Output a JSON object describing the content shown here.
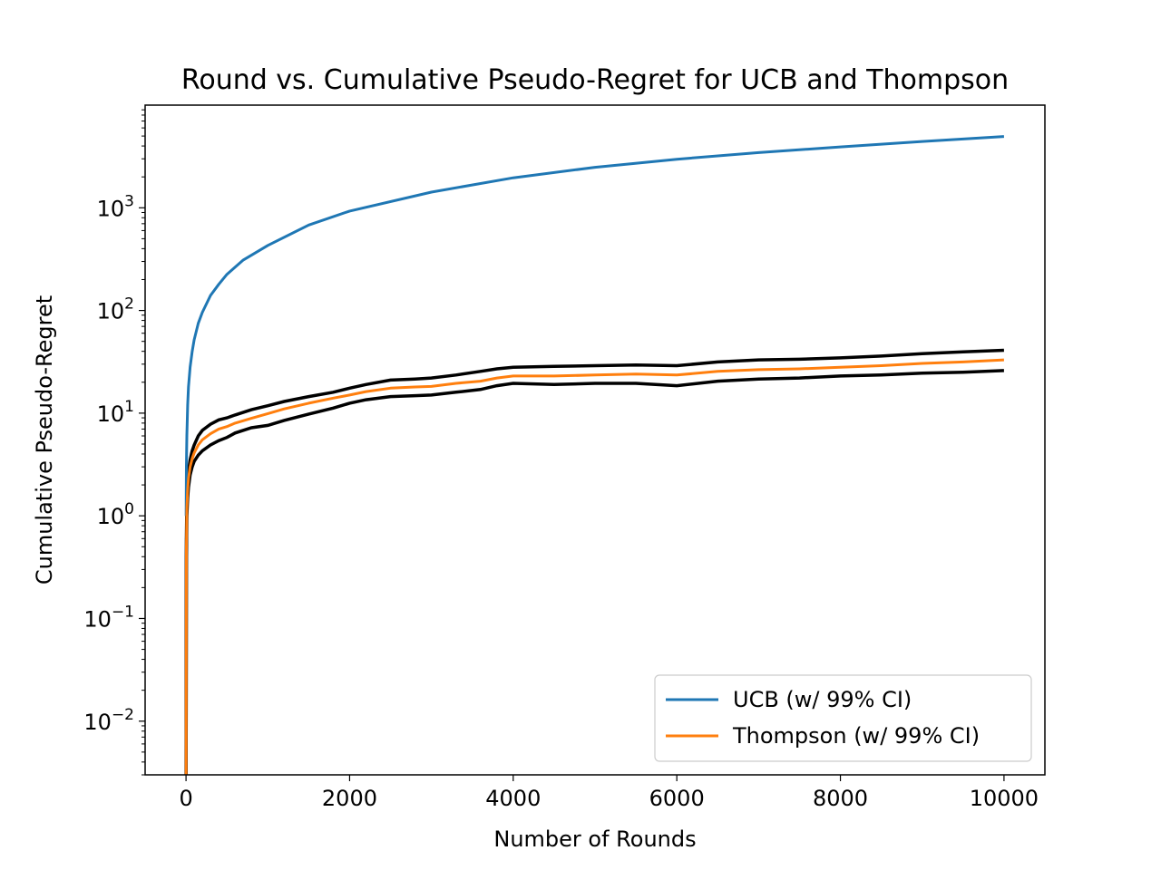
{
  "chart_data": {
    "type": "line",
    "title": "Round vs. Cumulative Pseudo-Regret for UCB and Thompson",
    "xlabel": "Number of Rounds",
    "ylabel": "Cumulative Pseudo-Regret",
    "xlim": [
      -500,
      10500
    ],
    "ylim": [
      0.003,
      10000
    ],
    "yscale": "log",
    "grid": false,
    "legend_position": "lower-right",
    "xticks": [
      0,
      2000,
      4000,
      6000,
      8000,
      10000
    ],
    "xtick_labels": [
      "0",
      "2000",
      "4000",
      "6000",
      "8000",
      "10000"
    ],
    "yticks": [
      0.01,
      0.1,
      1,
      10,
      100,
      1000
    ],
    "ytick_bases": [
      "10",
      "10",
      "10",
      "10",
      "10",
      "10"
    ],
    "ytick_exponents": [
      "−2",
      "−1",
      "0",
      "1",
      "2",
      "3"
    ],
    "series": [
      {
        "name": "UCB (w/ 99% CI)",
        "color": "#1f77b4",
        "x": [
          1,
          5,
          10,
          20,
          30,
          50,
          75,
          100,
          150,
          200,
          300,
          400,
          500,
          700,
          1000,
          1500,
          2000,
          3000,
          4000,
          5000,
          6000,
          7000,
          8000,
          9000,
          10000
        ],
        "y": [
          1,
          3,
          6,
          12,
          18,
          28,
          40,
          52,
          75,
          96,
          140,
          180,
          225,
          310,
          430,
          680,
          930,
          1420,
          1960,
          2480,
          2970,
          3450,
          3920,
          4430,
          4950
        ]
      },
      {
        "name": "Thompson (w/ 99% CI)",
        "color": "#ff7f0e",
        "x": [
          1,
          5,
          10,
          20,
          30,
          50,
          75,
          100,
          150,
          200,
          300,
          400,
          500,
          600,
          800,
          1000,
          1200,
          1500,
          1800,
          2000,
          2200,
          2500,
          2800,
          3000,
          3300,
          3600,
          3800,
          4000,
          4500,
          5000,
          5500,
          6000,
          6500,
          7000,
          7500,
          8000,
          8500,
          9000,
          9500,
          10000
        ],
        "y": [
          0.003,
          0.5,
          1.2,
          1.8,
          2.3,
          3.0,
          3.6,
          4.1,
          4.9,
          5.5,
          6.3,
          7.0,
          7.4,
          8.0,
          8.9,
          9.9,
          11.0,
          12.5,
          14.0,
          15.0,
          16.2,
          17.5,
          18.0,
          18.2,
          19.5,
          20.5,
          22.0,
          23.0,
          23.0,
          23.5,
          24.0,
          23.5,
          25.5,
          26.5,
          27.0,
          28.0,
          29.0,
          30.5,
          31.5,
          33.0
        ]
      }
    ],
    "ci_bands": {
      "color": "#000000",
      "x": [
        1,
        5,
        10,
        20,
        30,
        50,
        75,
        100,
        150,
        200,
        300,
        400,
        500,
        600,
        800,
        1000,
        1200,
        1500,
        1800,
        2000,
        2200,
        2500,
        2800,
        3000,
        3300,
        3600,
        3800,
        4000,
        4500,
        5000,
        5500,
        6000,
        6500,
        7000,
        7500,
        8000,
        8500,
        9000,
        9500,
        10000
      ],
      "upper": [
        0.003,
        0.6,
        1.4,
        2.1,
        2.7,
        3.5,
        4.3,
        4.9,
        6.0,
        6.8,
        7.8,
        8.6,
        9.0,
        9.6,
        10.8,
        11.8,
        13.0,
        14.5,
        16.0,
        17.5,
        19.0,
        21.0,
        21.5,
        22.0,
        23.5,
        25.5,
        27.0,
        28.0,
        28.5,
        29.0,
        29.5,
        29.0,
        31.5,
        33.0,
        33.5,
        34.5,
        36.0,
        38.0,
        39.5,
        41.0
      ],
      "lower": [
        0.003,
        0.4,
        1.0,
        1.5,
        1.9,
        2.5,
        3.0,
        3.4,
        3.9,
        4.3,
        4.9,
        5.4,
        5.8,
        6.4,
        7.2,
        7.6,
        8.5,
        9.8,
        11.2,
        12.5,
        13.5,
        14.5,
        14.8,
        15.0,
        16.0,
        17.0,
        18.5,
        19.5,
        19.0,
        19.5,
        19.5,
        18.5,
        20.5,
        21.5,
        22.0,
        23.0,
        23.5,
        24.5,
        25.0,
        26.0
      ]
    }
  }
}
